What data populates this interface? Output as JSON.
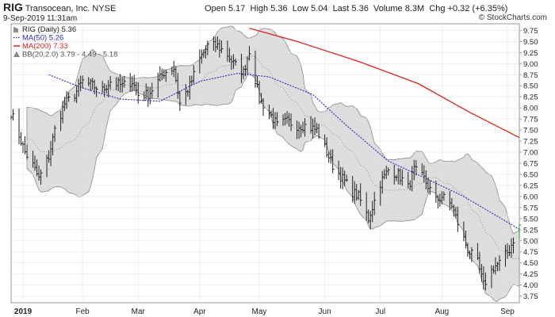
{
  "header": {
    "ticker": "RIG",
    "company": "Transocean, Inc.",
    "exchange": "NYSE",
    "datetime": "9-Sep-2019 11:31am",
    "open_label": "Open",
    "open": "5.17",
    "high_label": "High",
    "high": "5.36",
    "low_label": "Low",
    "low": "5.04",
    "last_label": "Last",
    "last": "5.36",
    "volume_label": "Volume",
    "volume": "8.3M",
    "chg_label": "Chg",
    "chg": "+0.32 (+6.35%)",
    "brand": "© StockCharts.com"
  },
  "legend": [
    {
      "text": "RIG (Daily) 5.36",
      "color": "#222222",
      "marker": "bars"
    },
    {
      "text": "MA(50) 5.26",
      "color": "#2a2ab8",
      "marker": "dotted"
    },
    {
      "text": "MA(200) 7.33",
      "color": "#e02020",
      "marker": "solid"
    },
    {
      "text": "BB(20,2.0) 3.79 - 4.49 - 5.18",
      "color": "#555555",
      "marker": "band"
    }
  ],
  "colors": {
    "price_bars": "#222222",
    "last_bar": "#1a9a1a",
    "ma50": "#2a2ab8",
    "ma200": "#e02020",
    "bb_fill": "#d9d9d9",
    "bb_edge": "#8a8a8a",
    "bb_mid": "#999999"
  },
  "chart_data": {
    "type": "line",
    "y_ticks": [
      3.75,
      4.0,
      4.25,
      4.5,
      4.75,
      5.0,
      5.25,
      5.5,
      5.75,
      6.0,
      6.25,
      6.5,
      6.75,
      7.0,
      7.25,
      7.5,
      7.75,
      8.0,
      8.25,
      8.5,
      8.75,
      9.0,
      9.25,
      9.5,
      9.75
    ],
    "ylim": [
      3.6,
      9.9
    ],
    "x_axis_labels": [
      "2019",
      "Feb",
      "Mar",
      "Apr",
      "May",
      "Jun",
      "Jul",
      "Aug",
      "Sep"
    ],
    "x_axis_dates": [
      "2019-01-02",
      "2019-02-01",
      "2019-03-01",
      "2019-04-01",
      "2019-05-01",
      "2019-06-03",
      "2019-07-01",
      "2019-08-01",
      "2019-09-03"
    ],
    "x_range": [
      "2018-12-27",
      "2019-09-09"
    ],
    "price_close_approx": {
      "dates": [
        "2018-12-27",
        "2019-01-03",
        "2019-01-07",
        "2019-01-10",
        "2019-01-15",
        "2019-01-18",
        "2019-01-23",
        "2019-01-28",
        "2019-02-01",
        "2019-02-06",
        "2019-02-11",
        "2019-02-15",
        "2019-02-21",
        "2019-02-26",
        "2019-03-01",
        "2019-03-06",
        "2019-03-11",
        "2019-03-14",
        "2019-03-19",
        "2019-03-22",
        "2019-03-27",
        "2019-04-01",
        "2019-04-05",
        "2019-04-10",
        "2019-04-15",
        "2019-04-18",
        "2019-04-23",
        "2019-04-26",
        "2019-05-01",
        "2019-05-06",
        "2019-05-10",
        "2019-05-15",
        "2019-05-20",
        "2019-05-24",
        "2019-05-30",
        "2019-06-04",
        "2019-06-07",
        "2019-06-12",
        "2019-06-17",
        "2019-06-20",
        "2019-06-25",
        "2019-07-01",
        "2019-07-05",
        "2019-07-10",
        "2019-07-15",
        "2019-07-18",
        "2019-07-23",
        "2019-07-29",
        "2019-08-01",
        "2019-08-06",
        "2019-08-09",
        "2019-08-14",
        "2019-08-19",
        "2019-08-22",
        "2019-08-27",
        "2019-08-30",
        "2019-09-04",
        "2019-09-09"
      ],
      "values": [
        7.9,
        7.0,
        6.7,
        6.4,
        6.9,
        7.5,
        8.1,
        8.3,
        8.6,
        8.5,
        8.4,
        8.6,
        8.5,
        8.6,
        8.3,
        8.3,
        8.6,
        8.8,
        8.9,
        8.1,
        8.5,
        9.1,
        9.4,
        9.4,
        9.2,
        9.0,
        8.8,
        9.3,
        8.2,
        7.9,
        7.6,
        7.7,
        7.6,
        7.6,
        7.5,
        7.0,
        6.7,
        6.4,
        6.1,
        6.0,
        5.5,
        6.3,
        6.6,
        6.5,
        6.2,
        6.6,
        6.4,
        5.9,
        6.0,
        5.8,
        5.4,
        4.8,
        4.5,
        4.0,
        4.4,
        4.5,
        4.8,
        5.36
      ]
    },
    "series": [
      {
        "name": "MA(50)",
        "last": 5.26
      },
      {
        "name": "MA(200)",
        "last": 7.33
      },
      {
        "name": "BB(20,2.0)",
        "last": [
          3.79,
          4.49,
          5.18
        ]
      }
    ]
  }
}
